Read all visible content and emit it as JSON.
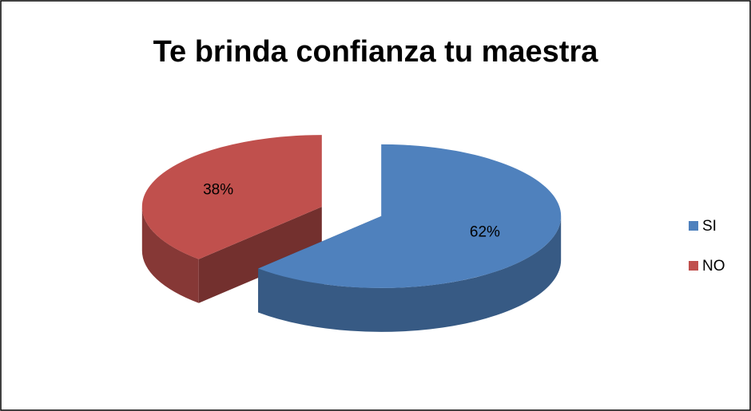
{
  "chart_data": {
    "type": "pie",
    "title": "Te brinda confianza tu maestra",
    "categories": [
      "SI",
      "NO"
    ],
    "values": [
      62,
      38
    ],
    "value_labels": [
      "62%",
      "38%"
    ],
    "colors": [
      "#4f81bd",
      "#c0504d"
    ],
    "legend": "right"
  }
}
